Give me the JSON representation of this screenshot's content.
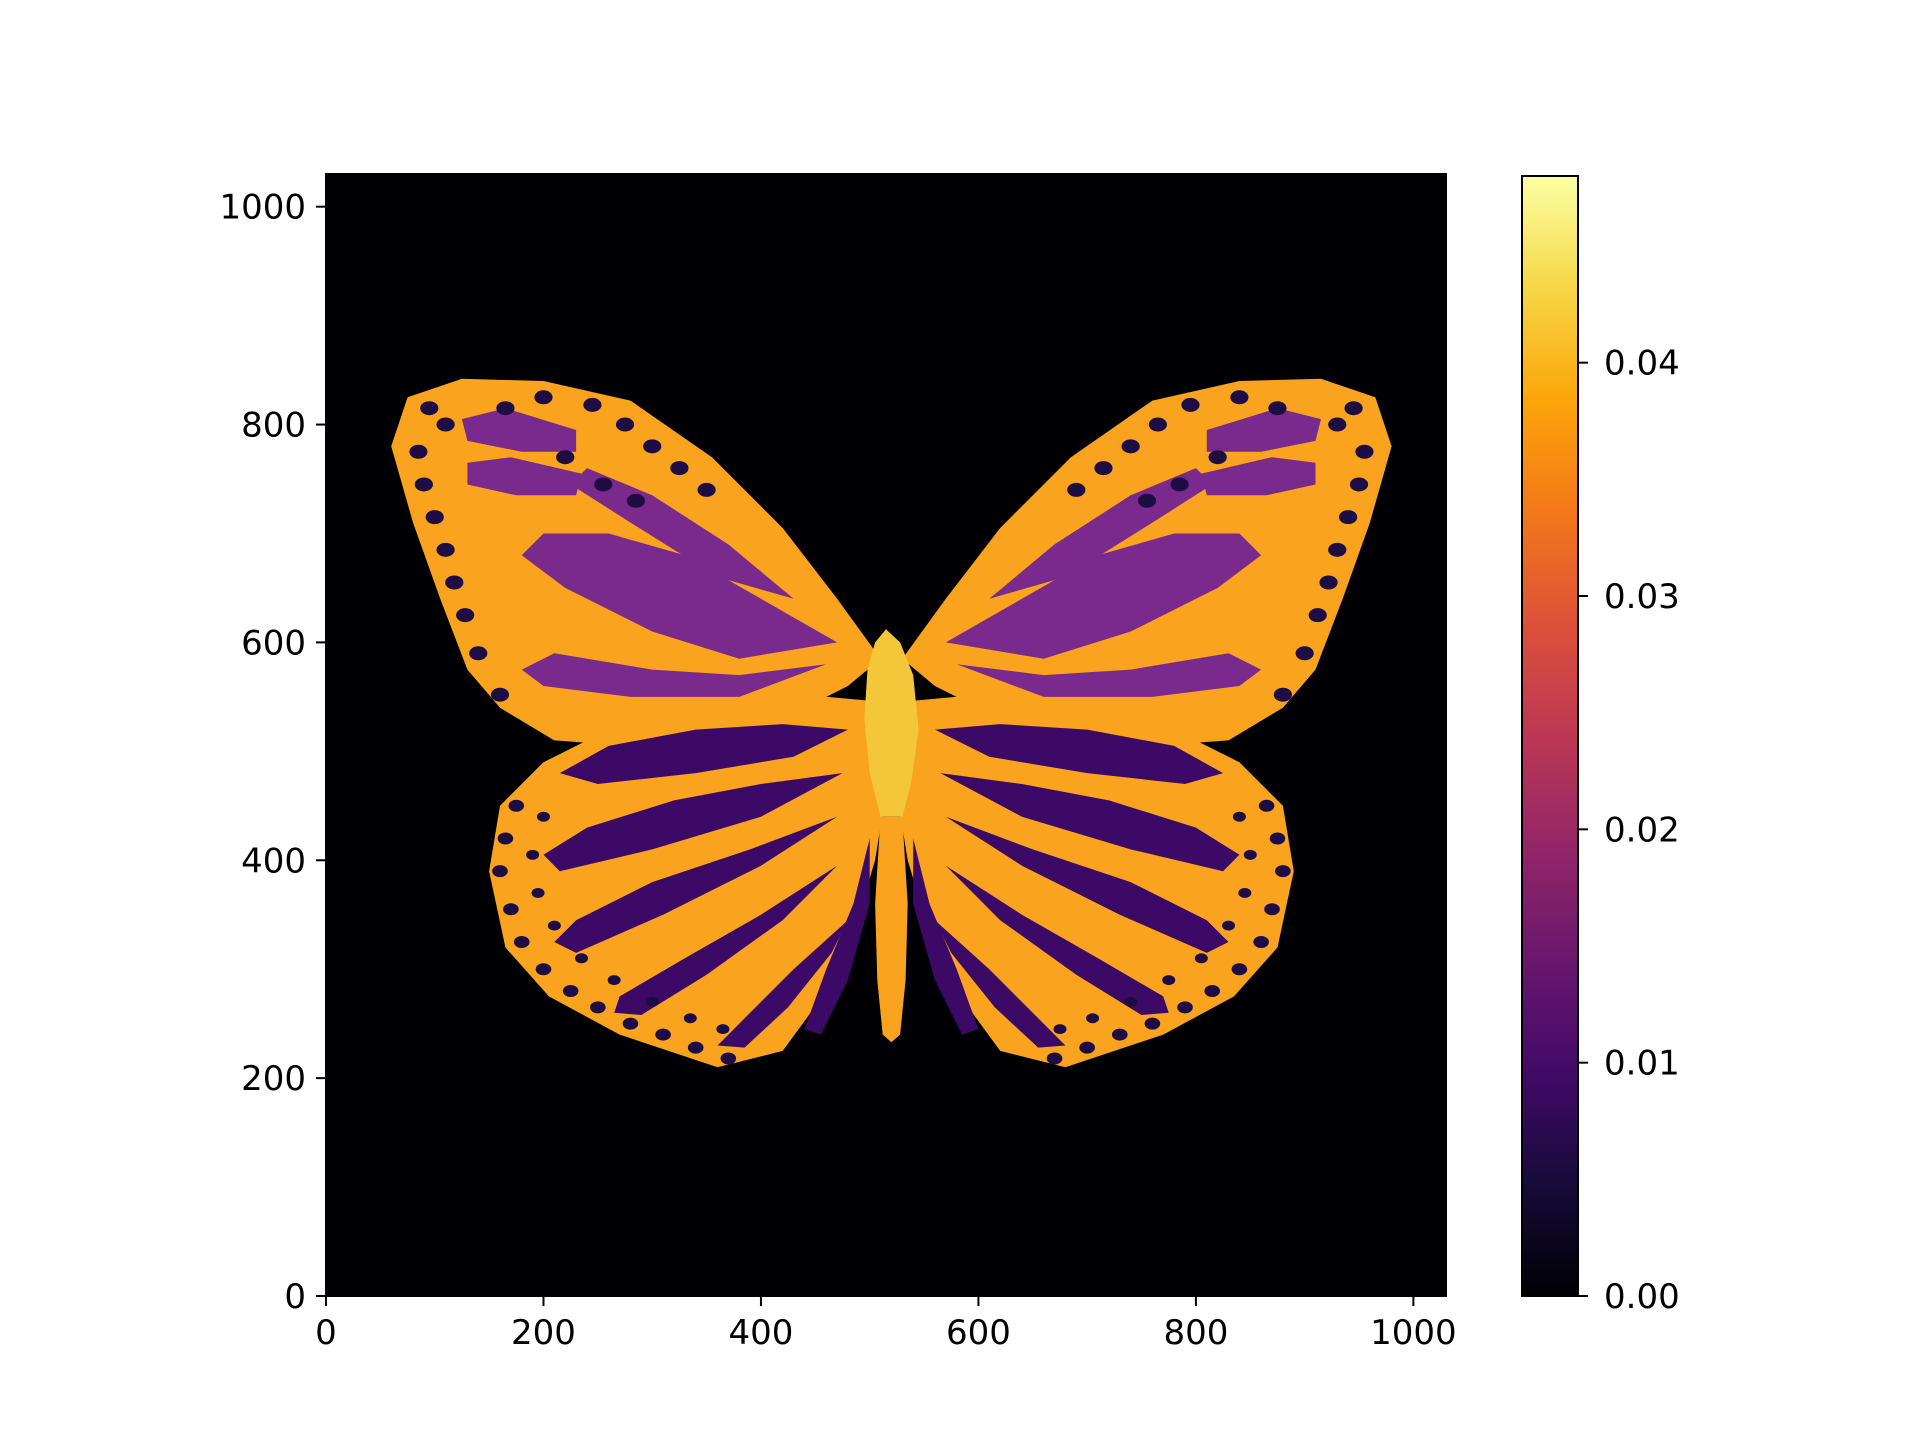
{
  "chart_data": {
    "type": "heatmap",
    "title": "",
    "xlabel": "",
    "ylabel": "",
    "xlim": [
      0,
      1030
    ],
    "ylim": [
      0,
      1030
    ],
    "x_ticks": [
      0,
      200,
      400,
      600,
      800,
      1000
    ],
    "y_ticks": [
      0,
      200,
      400,
      600,
      800,
      1000
    ],
    "x_tick_labels": [
      "0",
      "200",
      "400",
      "600",
      "800",
      "1000"
    ],
    "y_tick_labels": [
      "0",
      "200",
      "400",
      "600",
      "800",
      "1000"
    ],
    "colormap": "inferno",
    "colorbar": {
      "range": [
        0.0,
        0.048
      ],
      "ticks": [
        0.0,
        0.01,
        0.02,
        0.03,
        0.04
      ],
      "tick_labels": [
        "0.00",
        "0.01",
        "0.02",
        "0.03",
        "0.04"
      ],
      "position": "right"
    },
    "image_content": "butterfly-intensity-image",
    "background_value": 0.0,
    "colors": {
      "background": "#000004",
      "wing_edge": "#f9a31e",
      "wing_cell": "#7a2a8c",
      "wing_dark_cell": "#3c0a66",
      "spot": "#1e0c45",
      "body": "#f4c73a"
    }
  }
}
